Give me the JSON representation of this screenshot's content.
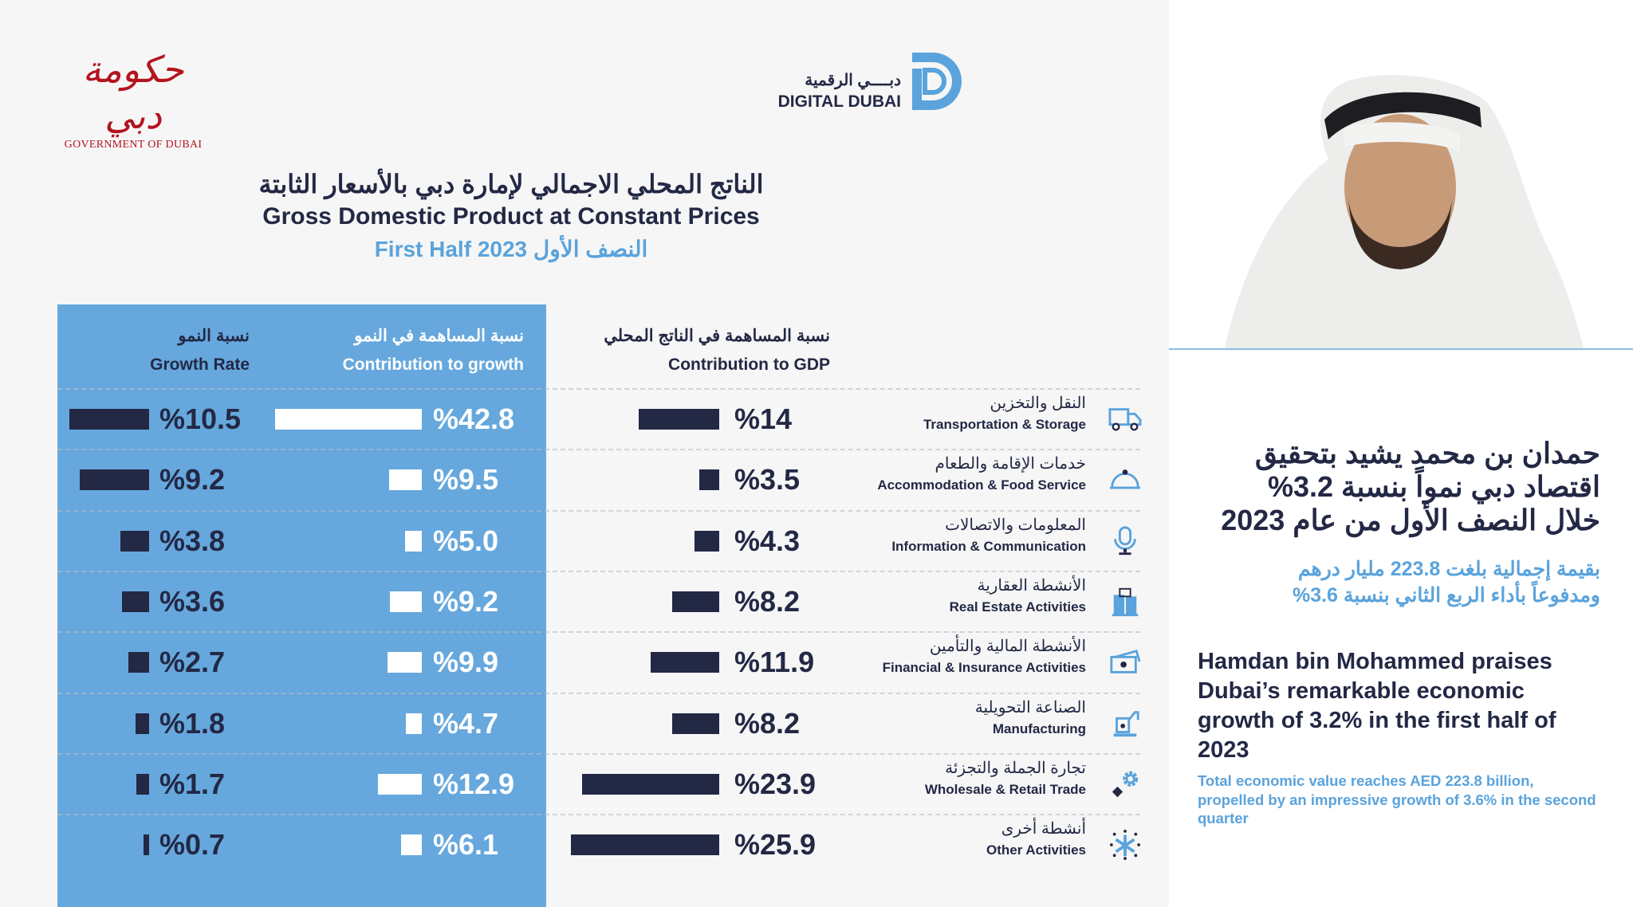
{
  "logos": {
    "gov_arabic": "حكومة دبي",
    "gov_english": "GOVERNMENT OF DUBAI",
    "digital_arabic": "دبــــي الرقمية",
    "digital_english": "DIGITAL DUBAI"
  },
  "header": {
    "title_ar": "الناتج المحلي الاجمالي لإمارة دبي بالأسعار الثابتة",
    "title_en": "Gross Domestic Product at Constant Prices",
    "subtitle": "First Half 2023 النصف الأول"
  },
  "columns": {
    "growth_rate": {
      "ar": "نسبة النمو",
      "en": "Growth Rate"
    },
    "contribution_growth": {
      "ar": "نسبة المساهمة في النمو",
      "en": "Contribution to growth"
    },
    "contribution_gdp": {
      "ar": "نسبة المساهمة في الناتج المحلي",
      "en": "Contribution to GDP"
    }
  },
  "colors": {
    "accent_blue": "#66a8dd",
    "navy": "#232845",
    "icon_blue": "#5aa3dc",
    "background": "#f6f6f6"
  },
  "chart_data": {
    "type": "table",
    "categories": [
      {
        "ar": "النقل والتخزين",
        "en": "Transportation & Storage",
        "icon": "truck-icon"
      },
      {
        "ar": "خدمات الإقامة والطعام",
        "en": "Accommodation & Food Service",
        "icon": "food-cloche-icon"
      },
      {
        "ar": "المعلومات والاتصالات",
        "en": "Information & Communication",
        "icon": "microphone-icon"
      },
      {
        "ar": "الأنشطة العقارية",
        "en": "Real Estate Activities",
        "icon": "building-icon"
      },
      {
        "ar": "الأنشطة المالية والتأمين",
        "en": "Financial & Insurance Activities",
        "icon": "money-icon"
      },
      {
        "ar": "الصناعة التحويلية",
        "en": "Manufacturing",
        "icon": "robot-arm-icon"
      },
      {
        "ar": "تجارة الجملة والتجزئة",
        "en": "Wholesale & Retail Trade",
        "icon": "gears-icon"
      },
      {
        "ar": "أنشطة أخرى",
        "en": "Other Activities",
        "icon": "sparkle-icon"
      }
    ],
    "series": [
      {
        "name": "Contribution to GDP",
        "values": [
          14,
          3.5,
          4.3,
          8.2,
          11.9,
          8.2,
          23.9,
          25.9
        ],
        "labels": [
          "%14",
          "%3.5",
          "%4.3",
          "%8.2",
          "%11.9",
          "%8.2",
          "%23.9",
          "%25.9"
        ]
      },
      {
        "name": "Contribution to growth",
        "values": [
          42.8,
          9.5,
          5.0,
          9.2,
          9.9,
          4.7,
          12.9,
          6.1
        ],
        "labels": [
          "%42.8",
          "%9.5",
          "%5.0",
          "%9.2",
          "%9.9",
          "%4.7",
          "%12.9",
          "%6.1"
        ]
      },
      {
        "name": "Growth Rate",
        "values": [
          10.5,
          9.2,
          3.8,
          3.6,
          2.7,
          1.8,
          1.7,
          0.7
        ],
        "labels": [
          "%10.5",
          "%9.2",
          "%3.8",
          "%3.6",
          "%2.7",
          "%1.8",
          "%1.7",
          "%0.7"
        ]
      }
    ]
  },
  "news": {
    "headline_ar": [
      "حمدان بن محمد يشيد بتحقيق",
      "اقتصاد دبي نمواً بنسبة 3.2%",
      "خلال النصف الأول  من عام 2023"
    ],
    "sub_ar": [
      "بقيمة إجمالية بلغت 223.8 مليار درهم",
      "ومدفوعاً بأداء الربع الثاني بنسبة 3.6%"
    ],
    "headline_en": "Hamdan bin Mohammed praises Dubai’s remarkable economic growth of 3.2% in the first half of 2023",
    "sub_en": "Total economic value reaches AED 223.8 billion, propelled by an impressive growth of 3.6% in the second quarter"
  }
}
